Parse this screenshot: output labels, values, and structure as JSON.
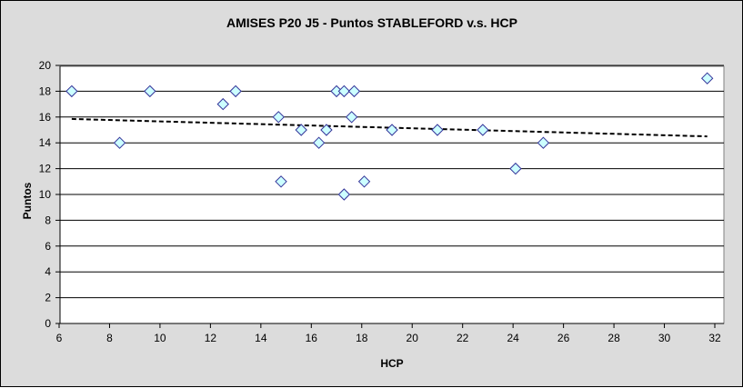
{
  "chart_data": {
    "type": "scatter",
    "title": "AMISES P20 J5 - Puntos STABLEFORD v.s. HCP",
    "xlabel": "HCP",
    "ylabel": "Puntos",
    "xlim": [
      6,
      32
    ],
    "ylim": [
      0,
      20
    ],
    "xticks": [
      6,
      8,
      10,
      12,
      14,
      16,
      18,
      20,
      22,
      24,
      26,
      28,
      30,
      32
    ],
    "yticks": [
      0,
      2,
      4,
      6,
      8,
      10,
      12,
      14,
      16,
      18,
      20
    ],
    "grid": "horizontal",
    "legend": "none",
    "marker": "diamond",
    "colors": {
      "marker_fill": "#ccffff",
      "marker_stroke": "#333399",
      "trend": "#000000",
      "background": "#dcdcdc",
      "plot": "#ffffff"
    },
    "points": [
      {
        "x": 6.5,
        "y": 18
      },
      {
        "x": 8.4,
        "y": 14
      },
      {
        "x": 9.6,
        "y": 18
      },
      {
        "x": 12.5,
        "y": 17
      },
      {
        "x": 13.0,
        "y": 18
      },
      {
        "x": 14.7,
        "y": 16
      },
      {
        "x": 14.8,
        "y": 11
      },
      {
        "x": 15.6,
        "y": 15
      },
      {
        "x": 16.3,
        "y": 14
      },
      {
        "x": 16.6,
        "y": 15
      },
      {
        "x": 17.0,
        "y": 18
      },
      {
        "x": 17.3,
        "y": 18
      },
      {
        "x": 17.3,
        "y": 10
      },
      {
        "x": 17.7,
        "y": 18
      },
      {
        "x": 17.6,
        "y": 16
      },
      {
        "x": 18.1,
        "y": 11
      },
      {
        "x": 19.2,
        "y": 15
      },
      {
        "x": 21.0,
        "y": 15
      },
      {
        "x": 22.8,
        "y": 15
      },
      {
        "x": 24.1,
        "y": 12
      },
      {
        "x": 25.2,
        "y": 14
      },
      {
        "x": 31.7,
        "y": 19
      }
    ],
    "trendline": {
      "type": "linear",
      "from": {
        "x": 6.5,
        "y": 15.85
      },
      "to": {
        "x": 31.7,
        "y": 14.5
      },
      "style": "dashed"
    }
  }
}
